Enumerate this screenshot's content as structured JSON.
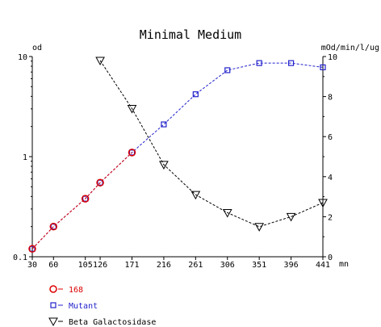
{
  "chart_data": {
    "type": "line",
    "title": "Minimal Medium",
    "x_unit": "mn",
    "x_ticks": [
      "30",
      "60",
      "105",
      "126",
      "171",
      "216",
      "261",
      "306",
      "351",
      "396",
      "441"
    ],
    "x_tick_values": [
      30,
      60,
      105,
      126,
      171,
      216,
      261,
      306,
      351,
      396,
      441
    ],
    "xlim": [
      30,
      441
    ],
    "y_left": {
      "label": "od",
      "scale": "log",
      "range": [
        0.1,
        10
      ],
      "ticks": [
        "0.1",
        "1",
        "10"
      ],
      "tick_values": [
        0.1,
        1,
        10
      ]
    },
    "y_right": {
      "label": "mOd/min/l/ug",
      "scale": "linear",
      "range": [
        0,
        10
      ],
      "ticks": [
        "0",
        "2",
        "4",
        "6",
        "8",
        "10"
      ],
      "tick_values": [
        0,
        2,
        4,
        6,
        8,
        10
      ]
    },
    "legend_position": "bottom-left",
    "series": [
      {
        "name": "168",
        "axis": "left",
        "marker": "circle",
        "color": "#dd0000",
        "line_color": "#dd0000",
        "x": [
          30,
          60,
          105,
          126,
          171
        ],
        "y": [
          0.12,
          0.2,
          0.38,
          0.55,
          1.1
        ]
      },
      {
        "name": "Mutant",
        "axis": "left",
        "marker": "square",
        "color": "#2222cc",
        "line_color": "#2222cc",
        "x": [
          30,
          60,
          105,
          126,
          171,
          216,
          261,
          306,
          351,
          396,
          441
        ],
        "y": [
          0.12,
          0.2,
          0.38,
          0.55,
          1.1,
          2.1,
          4.2,
          7.3,
          8.6,
          8.6,
          7.8
        ]
      },
      {
        "name": "Beta Galactosidase",
        "axis": "right",
        "marker": "triangle-down",
        "color": "#000000",
        "line_color": "#000000",
        "x": [
          126,
          171,
          216,
          261,
          306,
          351,
          396,
          441
        ],
        "y": [
          9.8,
          7.4,
          4.6,
          3.1,
          2.2,
          1.5,
          2.0,
          2.7
        ]
      }
    ]
  }
}
